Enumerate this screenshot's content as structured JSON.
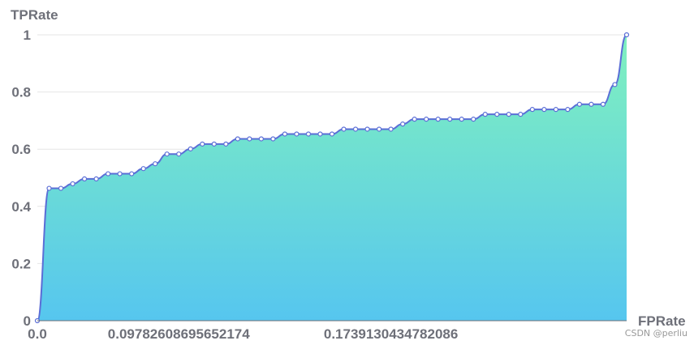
{
  "colors": {
    "line": "#5b6ed6",
    "point_fill": "#ffffff",
    "gridline": "#e6e6e6",
    "axis": "#6e7079",
    "area_top": "#80f1be",
    "area_bottom": "#56c6ef"
  },
  "watermark": "CSDN @perliu",
  "chart_data": {
    "type": "area",
    "xlabel": "FPRate",
    "ylabel": "TPRate",
    "ylim": [
      0,
      1
    ],
    "y_ticks": [
      "0",
      "0.2",
      "0.4",
      "0.6",
      "0.8",
      "1"
    ],
    "x_tick_labels": [
      "0.0",
      "0.09782608695652174",
      "0.1739130434782086"
    ],
    "grid": true,
    "series": [
      {
        "values": [
          0,
          0.463,
          0.463,
          0.479,
          0.496,
          0.496,
          0.514,
          0.514,
          0.514,
          0.532,
          0.549,
          0.583,
          0.583,
          0.601,
          0.618,
          0.618,
          0.618,
          0.636,
          0.636,
          0.636,
          0.636,
          0.653,
          0.653,
          0.653,
          0.653,
          0.653,
          0.67,
          0.67,
          0.67,
          0.67,
          0.67,
          0.688,
          0.705,
          0.705,
          0.705,
          0.705,
          0.705,
          0.705,
          0.722,
          0.722,
          0.722,
          0.722,
          0.739,
          0.739,
          0.739,
          0.739,
          0.757,
          0.757,
          0.757,
          0.826,
          1.0
        ]
      }
    ]
  }
}
